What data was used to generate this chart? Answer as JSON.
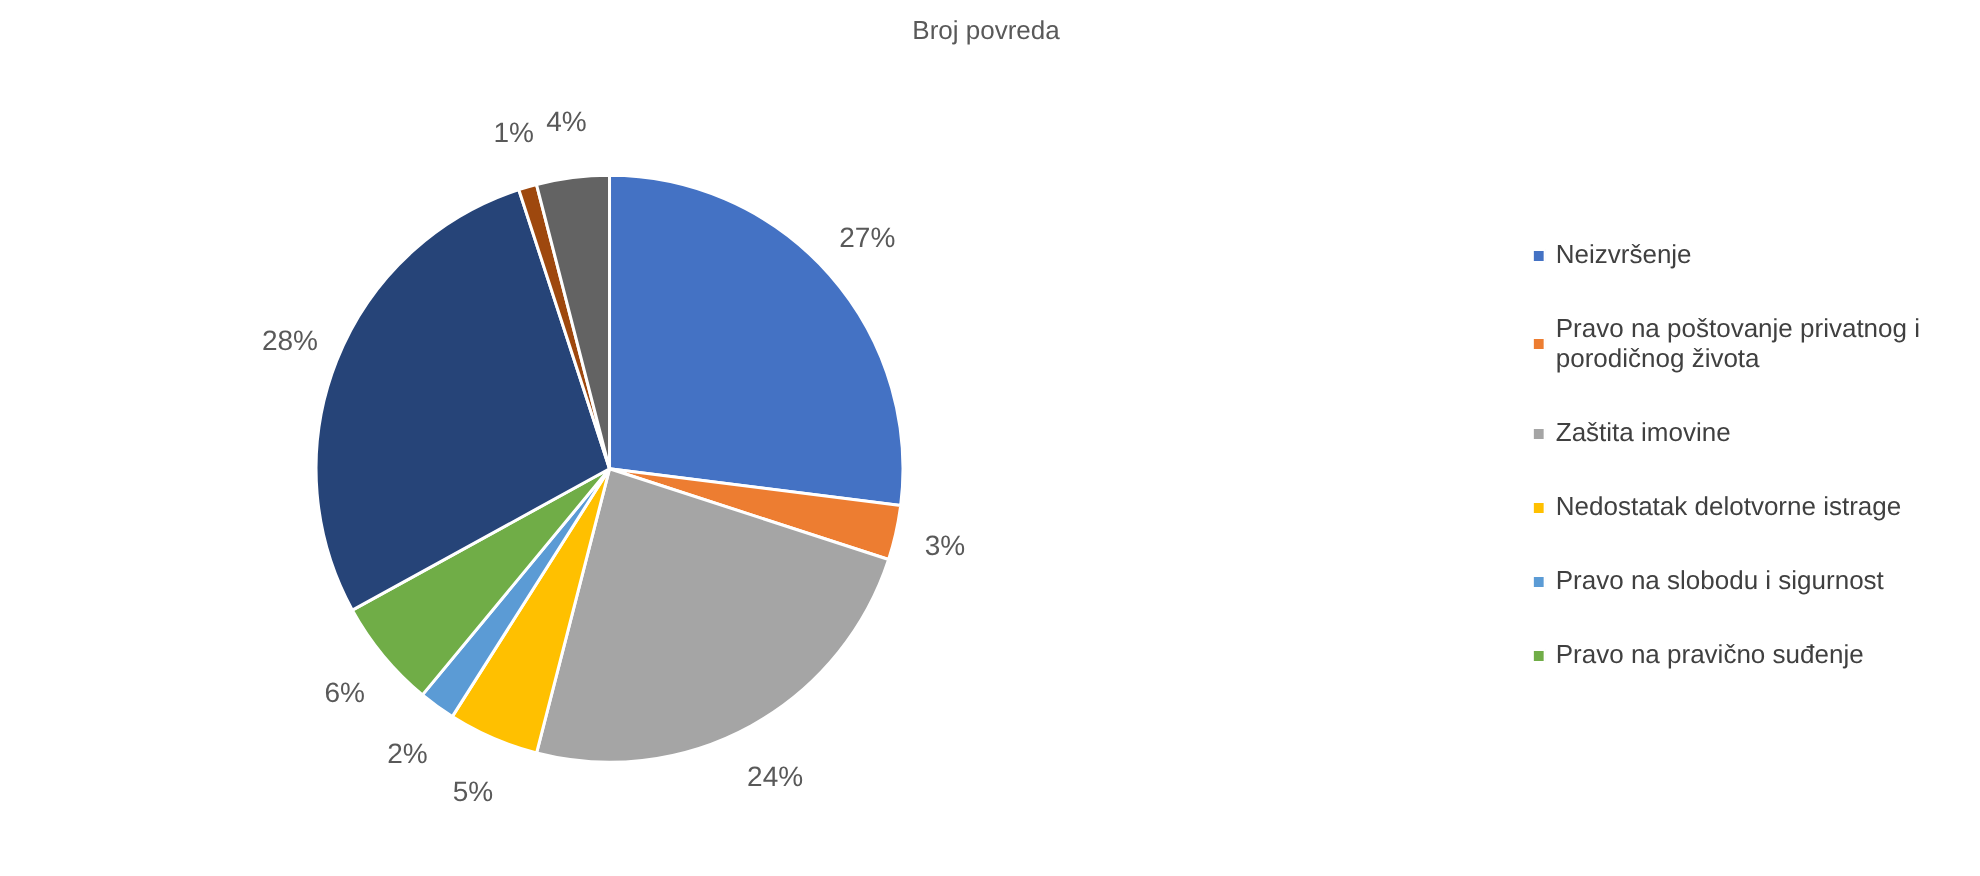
{
  "chart_data": {
    "type": "pie",
    "title": "Broj povreda",
    "categories": [
      "Neizvršenje",
      "Pravo na poštovanje privatnog i porodičnog života",
      "Zaštita imovine",
      "Nedostatak delotvorne istrage",
      "Pravo na slobodu i sigurnost",
      "Pravo na pravično suđenje",
      null,
      null,
      null
    ],
    "values": [
      27,
      3,
      24,
      5,
      2,
      6,
      28,
      1,
      4
    ],
    "colors": [
      "#4472c4",
      "#ed7d31",
      "#a5a5a5",
      "#ffc000",
      "#5b9bd5",
      "#70ad47",
      "#264478",
      "#9e480e",
      "#636363"
    ],
    "value_labels": [
      "27%",
      "3%",
      "24%",
      "5%",
      "2%",
      "6%",
      "28%",
      "1%",
      "4%"
    ],
    "legend": "right"
  }
}
